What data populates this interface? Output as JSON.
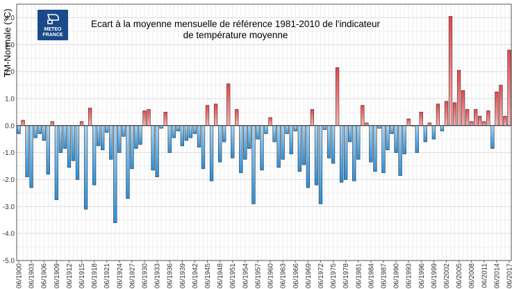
{
  "chart_data": {
    "type": "bar",
    "title_line1": "Ecart à la moyenne mensuelle de référence 1981-2010 de l'indicateur",
    "title_line2": "de température moyenne",
    "ylabel": "TM-Normale (°C)",
    "xlabel": "",
    "ylim": [
      -5.0,
      4.5
    ],
    "yticks": [
      -5.0,
      -4.0,
      -3.0,
      -2.0,
      -1.0,
      0.0,
      1.0,
      2.0,
      3.0,
      4.0
    ],
    "ytick_labels": [
      "-5.0",
      "-4.0",
      "-3.0",
      "-2.0",
      "-1.0",
      "0.0",
      "1.0",
      "2.0",
      "3.0",
      "4.0"
    ],
    "grid": true,
    "logo": {
      "line1": "METEO",
      "line2": "FRANCE",
      "color": "#1a4a8a"
    },
    "colors": {
      "positive": "#e8474a",
      "positive_light": "#f7b3b3",
      "negative": "#2a8fd9",
      "negative_light": "#a9d5f4"
    },
    "tick_every": 3,
    "categories": [
      "06/1900",
      "06/1901",
      "06/1902",
      "06/1903",
      "06/1904",
      "06/1905",
      "06/1906",
      "06/1907",
      "06/1908",
      "06/1909",
      "06/1910",
      "06/1911",
      "06/1912",
      "06/1913",
      "06/1914",
      "06/1915",
      "06/1916",
      "06/1917",
      "06/1918",
      "06/1919",
      "06/1920",
      "06/1921",
      "06/1922",
      "06/1923",
      "06/1924",
      "06/1925",
      "06/1926",
      "06/1927",
      "06/1928",
      "06/1929",
      "06/1930",
      "06/1931",
      "06/1932",
      "06/1933",
      "06/1934",
      "06/1935",
      "06/1936",
      "06/1937",
      "06/1938",
      "06/1939",
      "06/1940",
      "06/1941",
      "06/1942",
      "06/1943",
      "06/1944",
      "06/1945",
      "06/1946",
      "06/1947",
      "06/1948",
      "06/1949",
      "06/1950",
      "06/1951",
      "06/1952",
      "06/1953",
      "06/1954",
      "06/1955",
      "06/1956",
      "06/1957",
      "06/1958",
      "06/1959",
      "06/1960",
      "06/1961",
      "06/1962",
      "06/1963",
      "06/1964",
      "06/1965",
      "06/1966",
      "06/1967",
      "06/1968",
      "06/1969",
      "06/1970",
      "06/1971",
      "06/1972",
      "06/1973",
      "06/1974",
      "06/1975",
      "06/1976",
      "06/1977",
      "06/1978",
      "06/1979",
      "06/1980",
      "06/1981",
      "06/1982",
      "06/1983",
      "06/1984",
      "06/1985",
      "06/1986",
      "06/1987",
      "06/1988",
      "06/1989",
      "06/1990",
      "06/1991",
      "06/1992",
      "06/1993",
      "06/1994",
      "06/1995",
      "06/1996",
      "06/1997",
      "06/1998",
      "06/1999",
      "06/2000",
      "06/2001",
      "06/2002",
      "06/2003",
      "06/2004",
      "06/2005",
      "06/2006",
      "06/2007",
      "06/2008",
      "06/2009",
      "06/2010",
      "06/2011",
      "06/2012",
      "06/2013",
      "06/2014",
      "06/2015",
      "06/2016",
      "06/2017"
    ],
    "values": [
      -0.3,
      0.2,
      -1.9,
      -2.3,
      -0.45,
      -0.3,
      -0.55,
      -1.8,
      0.15,
      -2.75,
      -1.0,
      -0.85,
      -1.55,
      -1.3,
      -2.0,
      0.15,
      -3.1,
      0.65,
      -2.2,
      -0.75,
      -0.9,
      -0.25,
      -1.25,
      -3.6,
      -1.0,
      -0.4,
      -2.7,
      -1.6,
      -0.85,
      -0.7,
      0.55,
      0.6,
      -1.65,
      -1.9,
      -0.1,
      0.5,
      -1.0,
      -0.45,
      -0.2,
      -0.75,
      -0.55,
      -0.45,
      -0.3,
      -0.8,
      -1.6,
      0.75,
      -2.05,
      0.8,
      -1.35,
      -0.6,
      1.55,
      -1.2,
      0.6,
      -1.75,
      -1.25,
      -0.85,
      -2.9,
      -0.5,
      -1.65,
      -0.3,
      0.3,
      -0.6,
      -1.55,
      -1.25,
      -0.3,
      -1.05,
      -0.2,
      -1.7,
      -1.45,
      -2.3,
      0.6,
      -2.2,
      -2.9,
      -0.15,
      -1.2,
      -1.4,
      2.15,
      -2.1,
      -2.0,
      -0.6,
      -2.05,
      -1.25,
      0.75,
      0.1,
      -1.35,
      -1.7,
      -0.1,
      -1.75,
      -0.9,
      -0.3,
      -1.0,
      -1.85,
      -1.05,
      0.25,
      0.0,
      -1.0,
      0.5,
      -0.6,
      0.1,
      -0.5,
      0.8,
      -0.2,
      0.9,
      4.05,
      0.85,
      2.05,
      1.3,
      0.6,
      0.15,
      0.6,
      0.35,
      0.15,
      0.55,
      -0.85,
      1.25,
      1.5,
      0.35,
      2.8
    ]
  }
}
